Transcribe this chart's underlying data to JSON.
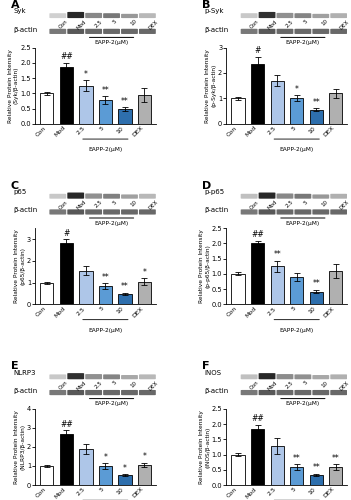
{
  "panels": [
    {
      "label": "A",
      "title": "Syk",
      "ylabel": "Relative Protein Intensity\n(Syk/β-actin)",
      "ylim": [
        0,
        2.5
      ],
      "yticks": [
        0.0,
        0.5,
        1.0,
        1.5,
        2.0,
        2.5
      ],
      "values": [
        1.0,
        1.85,
        1.25,
        0.78,
        0.48,
        0.95
      ],
      "errors": [
        0.05,
        0.15,
        0.18,
        0.12,
        0.07,
        0.22
      ],
      "sig_mod": "##",
      "sig_treatment": [
        "",
        "",
        "*",
        "**",
        "**",
        ""
      ]
    },
    {
      "label": "B",
      "title": "p-Syk",
      "ylabel": "Relative Protein Intensity\n(p-Syk/β-actin)",
      "ylim": [
        0,
        3.0
      ],
      "yticks": [
        0.0,
        1.0,
        2.0,
        3.0
      ],
      "values": [
        1.0,
        2.35,
        1.7,
        1.0,
        0.55,
        1.2
      ],
      "errors": [
        0.06,
        0.28,
        0.22,
        0.12,
        0.06,
        0.18
      ],
      "sig_mod": "#",
      "sig_treatment": [
        "",
        "",
        "",
        "*",
        "**",
        ""
      ]
    },
    {
      "label": "C",
      "title": "p65",
      "ylabel": "Relative Protein Intensity\n(p65/β-actin)",
      "ylim": [
        0,
        3.5
      ],
      "yticks": [
        0,
        1,
        2,
        3
      ],
      "values": [
        1.0,
        2.8,
        1.55,
        0.85,
        0.48,
        1.05
      ],
      "errors": [
        0.05,
        0.2,
        0.22,
        0.12,
        0.06,
        0.16
      ],
      "sig_mod": "#",
      "sig_treatment": [
        "",
        "",
        "",
        "**",
        "**",
        "*"
      ]
    },
    {
      "label": "D",
      "title": "p-p65",
      "ylabel": "Relative Protein Intensity\n(p-p65/β-actin)",
      "ylim": [
        0,
        2.5
      ],
      "yticks": [
        0.0,
        0.5,
        1.0,
        1.5,
        2.0,
        2.5
      ],
      "values": [
        1.0,
        2.0,
        1.25,
        0.9,
        0.42,
        1.1
      ],
      "errors": [
        0.05,
        0.08,
        0.18,
        0.14,
        0.06,
        0.22
      ],
      "sig_mod": "##",
      "sig_treatment": [
        "",
        "",
        "**",
        "",
        "**",
        ""
      ]
    },
    {
      "label": "E",
      "title": "NLRP3",
      "ylabel": "Relative Protein Intensity\n(NLRP3/β-actin)",
      "ylim": [
        0,
        4.0
      ],
      "yticks": [
        0,
        1,
        2,
        3,
        4
      ],
      "values": [
        1.0,
        2.65,
        1.9,
        1.0,
        0.52,
        1.05
      ],
      "errors": [
        0.06,
        0.22,
        0.25,
        0.15,
        0.05,
        0.12
      ],
      "sig_mod": "##",
      "sig_treatment": [
        "",
        "",
        "",
        "*",
        "*",
        "*"
      ]
    },
    {
      "label": "F",
      "title": "iNOS",
      "ylabel": "Relative Protein Intensity\n(iNOS/β-actin)",
      "ylim": [
        0,
        2.5
      ],
      "yticks": [
        0.0,
        0.5,
        1.0,
        1.5,
        2.0,
        2.5
      ],
      "values": [
        1.0,
        1.85,
        1.28,
        0.58,
        0.32,
        0.58
      ],
      "errors": [
        0.05,
        0.12,
        0.25,
        0.1,
        0.04,
        0.1
      ],
      "sig_mod": "##",
      "sig_treatment": [
        "",
        "",
        "",
        "**",
        "**",
        "**"
      ]
    }
  ],
  "categories": [
    "Con",
    "Mod",
    "2.5",
    "5",
    "10",
    "DEX"
  ],
  "bar_colors": [
    "white",
    "black",
    "#aec6e8",
    "#5b9bd5",
    "#2e6fad",
    "#b0b0b0"
  ],
  "bar_edgecolor": "black",
  "xlabel": "EAPP-2(μM)",
  "figure_bg": "white"
}
